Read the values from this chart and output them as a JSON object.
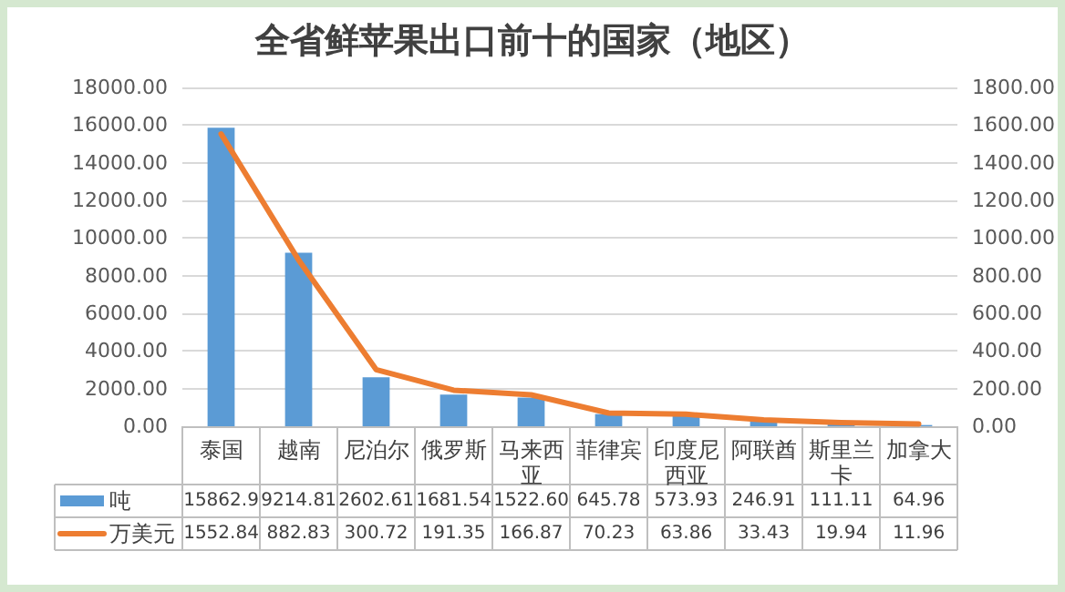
{
  "chart_data": {
    "type": "bar",
    "title": "全省鲜苹果出口前十的国家（地区）",
    "categories": [
      "泰国",
      "越南",
      "尼泊尔",
      "俄罗斯",
      "马来西亚",
      "菲律宾",
      "印度尼西亚",
      "阿联酋",
      "斯里兰卡",
      "加拿大"
    ],
    "series": [
      {
        "name": "吨",
        "color": "#5b9bd5",
        "values": [
          15862.9,
          9214.81,
          2602.61,
          1681.54,
          1522.6,
          645.78,
          573.93,
          246.91,
          111.11,
          64.96
        ],
        "value_labels": [
          "15862.9",
          "9214.81",
          "2602.61",
          "1681.54",
          "1522.60",
          "645.78",
          "573.93",
          "246.91",
          "111.11",
          "64.96"
        ]
      },
      {
        "name": "万美元",
        "type": "line",
        "axis": "y2",
        "color": "#ed7d31",
        "values": [
          1552.84,
          882.83,
          300.72,
          191.35,
          166.87,
          70.23,
          63.86,
          33.43,
          19.94,
          11.96
        ],
        "value_labels": [
          "1552.84",
          "882.83",
          "300.72",
          "191.35",
          "166.87",
          "70.23",
          "63.86",
          "33.43",
          "19.94",
          "11.96"
        ]
      }
    ],
    "ylim": [
      0,
      18000
    ],
    "yticks": [
      {
        "value": 0,
        "label": "0.00"
      },
      {
        "value": 2000,
        "label": "2000.00"
      },
      {
        "value": 4000,
        "label": "4000.00"
      },
      {
        "value": 6000,
        "label": "6000.00"
      },
      {
        "value": 8000,
        "label": "8000.00"
      },
      {
        "value": 10000,
        "label": "10000.00"
      },
      {
        "value": 12000,
        "label": "12000.00"
      },
      {
        "value": 14000,
        "label": "14000.00"
      },
      {
        "value": 16000,
        "label": "16000.00"
      },
      {
        "value": 18000,
        "label": "18000.00"
      }
    ],
    "y2lim": [
      0,
      1800
    ],
    "y2ticks": [
      {
        "value": 0,
        "label": "0.00"
      },
      {
        "value": 200,
        "label": "200.00"
      },
      {
        "value": 400,
        "label": "400.00"
      },
      {
        "value": 600,
        "label": "600.00"
      },
      {
        "value": 800,
        "label": "800.00"
      },
      {
        "value": 1000,
        "label": "1000.00"
      },
      {
        "value": 1200,
        "label": "1200.00"
      },
      {
        "value": 1400,
        "label": "1400.00"
      },
      {
        "value": 1600,
        "label": "1600.00"
      },
      {
        "value": 1800,
        "label": "1800.00"
      }
    ],
    "grid": "y",
    "legend": "bottom",
    "marker": "none",
    "line_style": "solid"
  }
}
